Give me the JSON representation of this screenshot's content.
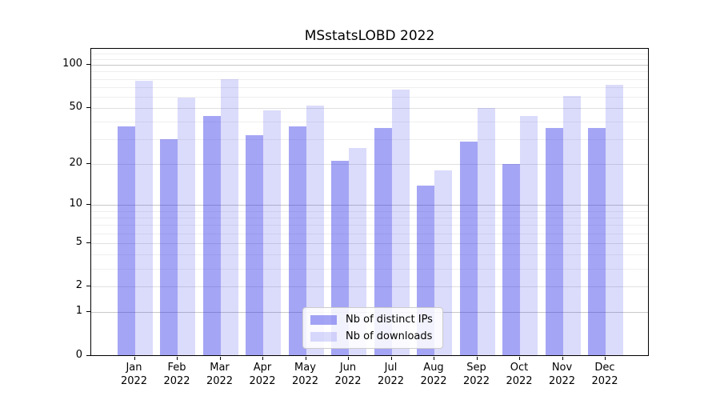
{
  "title": "MSstatsLOBD 2022",
  "colors": {
    "ips_bar": "rgba(40, 40, 230, 0.42)",
    "downloads_bar": "rgba(40, 40, 230, 0.17)",
    "grid_major": "#c8c8c8",
    "grid_mid": "#e0e0e0",
    "grid_minor": "#efefef",
    "spine": "#000000"
  },
  "x_axis": {
    "year_line": "2022",
    "months": [
      "Jan",
      "Feb",
      "Mar",
      "Apr",
      "May",
      "Jun",
      "Jul",
      "Aug",
      "Sep",
      "Oct",
      "Nov",
      "Dec"
    ]
  },
  "y_axis": {
    "tick_labels": [
      "0",
      "1",
      "2",
      "5",
      "10",
      "20",
      "50",
      "100"
    ]
  },
  "chart_data": {
    "type": "bar",
    "title": "MSstatsLOBD 2022",
    "categories": [
      "Jan 2022",
      "Feb 2022",
      "Mar 2022",
      "Apr 2022",
      "May 2022",
      "Jun 2022",
      "Jul 2022",
      "Aug 2022",
      "Sep 2022",
      "Oct 2022",
      "Nov 2022",
      "Dec 2022"
    ],
    "series": [
      {
        "name": "Nb of distinct IPs",
        "values": [
          37,
          30,
          44,
          32,
          37,
          21,
          36,
          14,
          29,
          20,
          36,
          36
        ]
      },
      {
        "name": "Nb of downloads",
        "values": [
          78,
          59,
          80,
          48,
          52,
          26,
          67,
          18,
          50,
          44,
          61,
          73
        ]
      }
    ],
    "xlabel": "",
    "ylabel": "",
    "y_scale": "log1p",
    "ylim": [
      0,
      130
    ],
    "y_ticks": [
      0,
      1,
      2,
      5,
      10,
      20,
      50,
      100
    ],
    "y_decade_ticks": [
      1,
      10,
      100
    ],
    "y_minor_gridlines": [
      3,
      4,
      6,
      7,
      8,
      9,
      30,
      40,
      60,
      70,
      80,
      90,
      110,
      120
    ],
    "grid": "horizontal",
    "legend_position": "lower center"
  }
}
